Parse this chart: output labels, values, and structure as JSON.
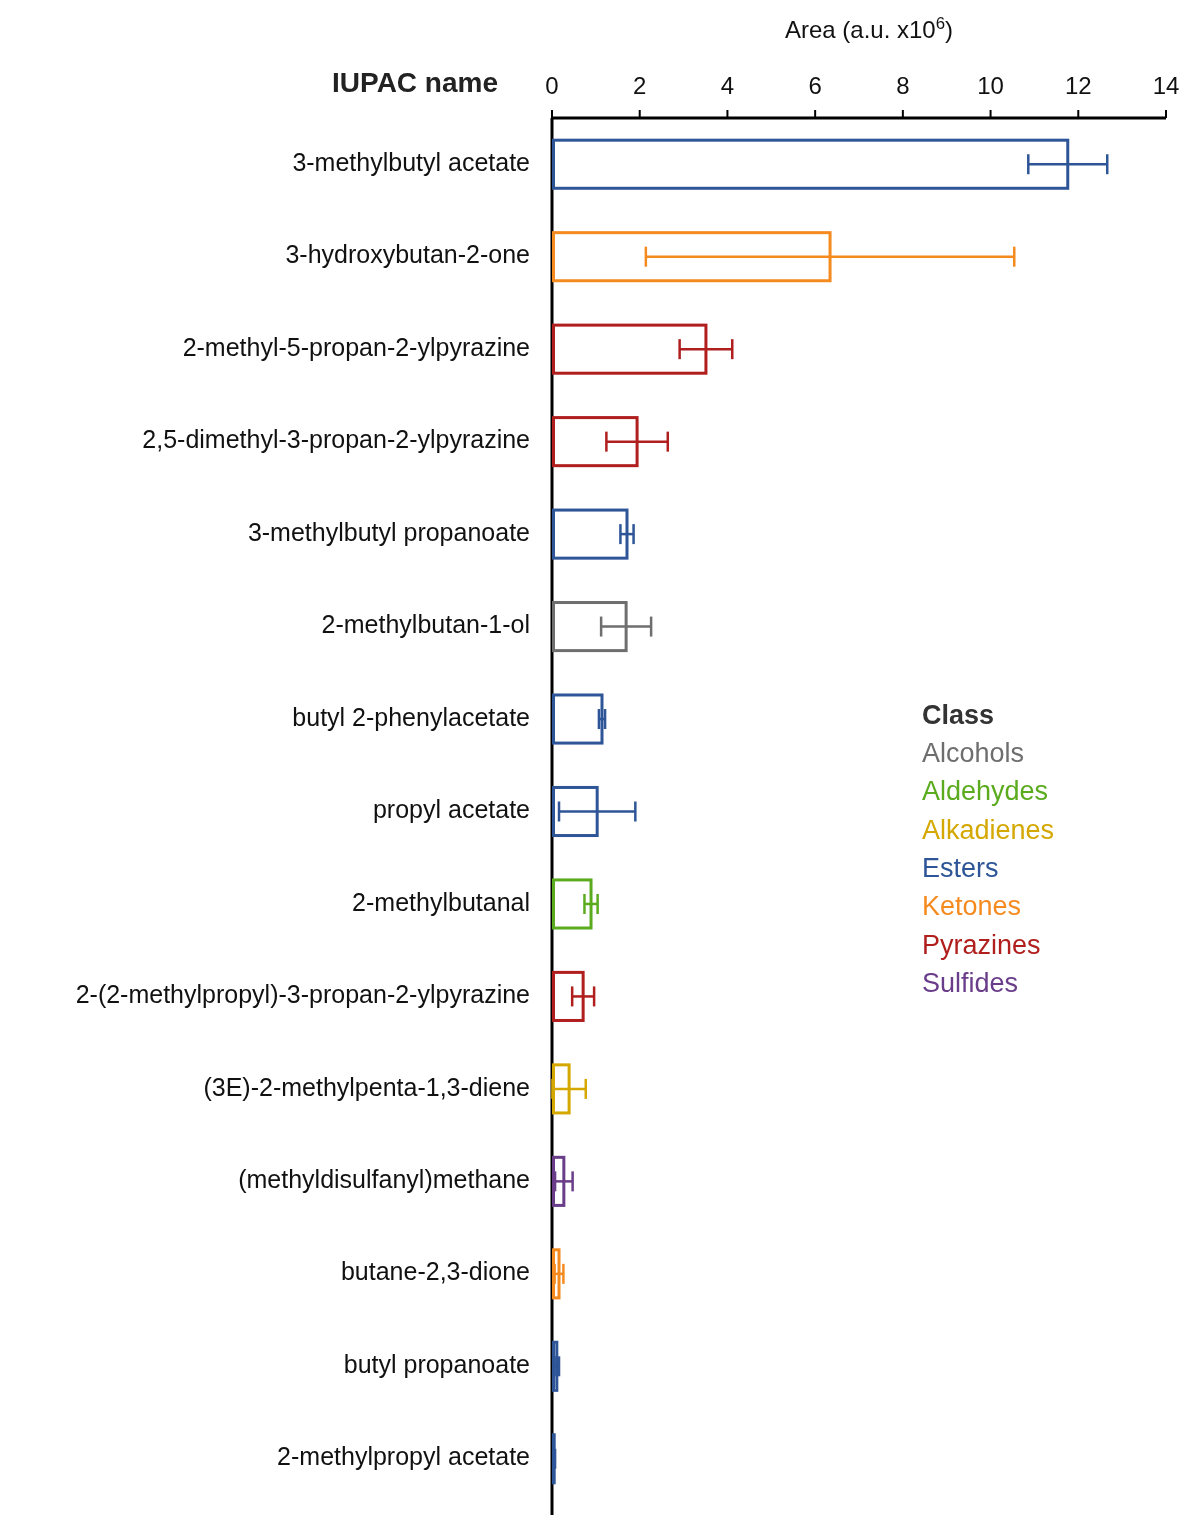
{
  "chart_data": {
    "type": "bar",
    "orientation": "horizontal",
    "ylabel": "IUPAC name",
    "xlabel": "Area (a.u. x10$^{6}$)",
    "legend_title": "Class",
    "legend": "right",
    "grid": false,
    "xlim": [
      0,
      14
    ],
    "xticks": [
      0,
      2,
      4,
      6,
      8,
      10,
      12,
      14
    ],
    "categories": [
      "3-methylbutyl acetate",
      "3-hydroxybutan-2-one",
      "2-methyl-5-propan-2-ylpyrazine",
      "2,5-dimethyl-3-propan-2-ylpyrazine",
      "3-methylbutyl propanoate",
      "2-methylbutan-1-ol",
      "butyl 2-phenylacetate",
      "propyl acetate",
      "2-methylbutanal",
      "2-(2-methylpropyl)-3-propan-2-ylpyrazine",
      "(3E)-2-methylpenta-1,3-diene",
      "(methyldisulfanyl)methane",
      "butane-2,3-dione",
      "butyl propanoate",
      "2-methylpropyl acetate"
    ],
    "series": [
      {
        "name": "Alcohols",
        "color": "#6e6e6e",
        "values": [
          null,
          null,
          null,
          null,
          null,
          1.69,
          null,
          null,
          null,
          null,
          null,
          null,
          null,
          null,
          null
        ],
        "errors": [
          null,
          null,
          null,
          null,
          null,
          0.57,
          null,
          null,
          null,
          null,
          null,
          null,
          null,
          null,
          null
        ]
      },
      {
        "name": "Aldehydes",
        "color": "#5aab1e",
        "values": [
          null,
          null,
          null,
          null,
          null,
          null,
          null,
          null,
          0.89,
          null,
          null,
          null,
          null,
          null,
          null
        ],
        "errors": [
          null,
          null,
          null,
          null,
          null,
          null,
          null,
          null,
          0.15,
          null,
          null,
          null,
          null,
          null,
          null
        ]
      },
      {
        "name": "Alkadienes",
        "color": "#d4a800",
        "values": [
          null,
          null,
          null,
          null,
          null,
          null,
          null,
          null,
          null,
          null,
          0.39,
          null,
          null,
          null,
          null
        ],
        "errors": [
          null,
          null,
          null,
          null,
          null,
          null,
          null,
          null,
          null,
          null,
          0.38,
          null,
          null,
          null,
          null
        ]
      },
      {
        "name": "Esters",
        "color": "#2e5597",
        "values": [
          11.76,
          null,
          null,
          null,
          1.71,
          null,
          1.14,
          1.03,
          null,
          null,
          null,
          null,
          null,
          0.11,
          0.05
        ],
        "errors": [
          0.9,
          null,
          null,
          null,
          0.15,
          null,
          0.07,
          0.87,
          null,
          null,
          null,
          null,
          null,
          0.05,
          0.02
        ]
      },
      {
        "name": "Ketones",
        "color": "#f58a1f",
        "values": [
          null,
          6.34,
          null,
          null,
          null,
          null,
          null,
          null,
          null,
          null,
          null,
          null,
          0.16,
          null,
          null
        ],
        "errors": [
          null,
          4.2,
          null,
          null,
          null,
          null,
          null,
          null,
          null,
          null,
          null,
          null,
          0.1,
          null,
          null
        ]
      },
      {
        "name": "Pyrazines",
        "color": "#b01e1e",
        "values": [
          null,
          null,
          3.51,
          1.94,
          null,
          null,
          null,
          null,
          null,
          0.71,
          null,
          null,
          null,
          null,
          null
        ],
        "errors": [
          null,
          null,
          0.6,
          0.7,
          null,
          null,
          null,
          null,
          null,
          0.25,
          null,
          null,
          null,
          null,
          null
        ]
      },
      {
        "name": "Sulfides",
        "color": "#6a3d8a",
        "values": [
          null,
          null,
          null,
          null,
          null,
          null,
          null,
          null,
          null,
          null,
          null,
          0.27,
          null,
          null,
          null
        ],
        "errors": [
          null,
          null,
          null,
          null,
          null,
          null,
          null,
          null,
          null,
          null,
          null,
          0.2,
          null,
          null,
          null
        ]
      }
    ]
  }
}
